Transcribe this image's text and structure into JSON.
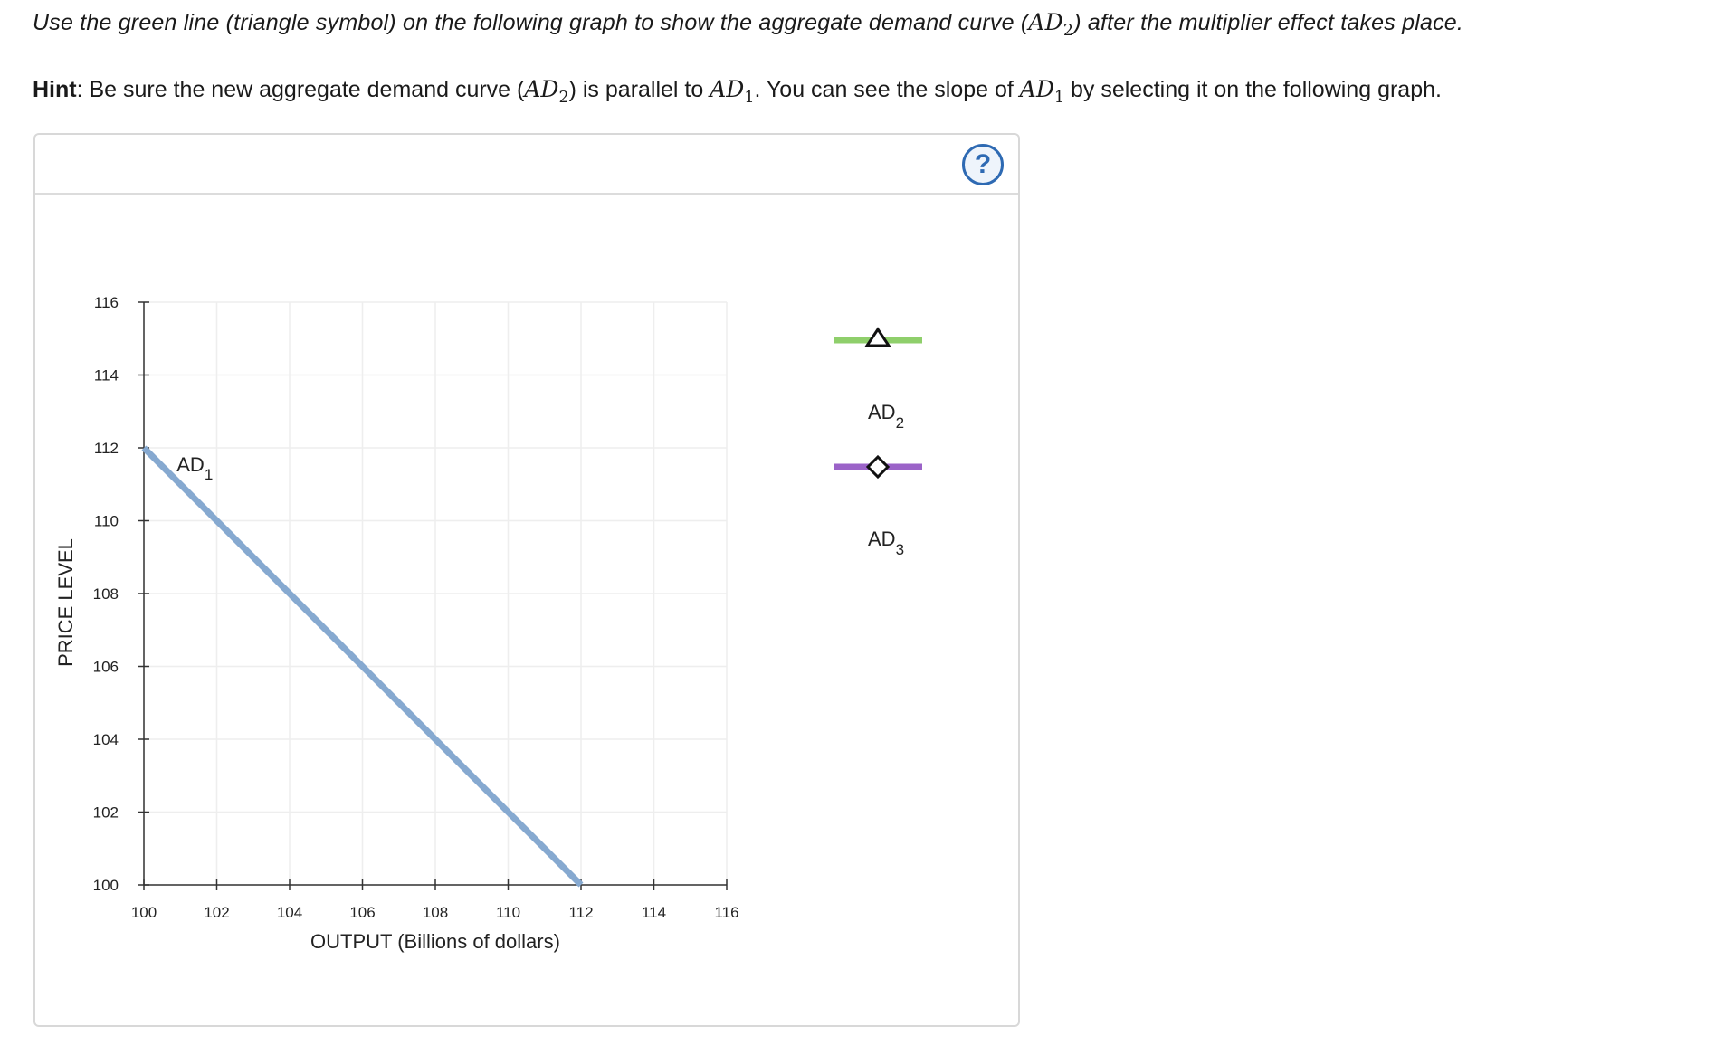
{
  "instructions": {
    "text_before": "Use the green line (triangle symbol) on the following graph to show the aggregate demand curve (",
    "math_ad2": "AD",
    "math_ad2_sub": "2",
    "text_after": ") after the multiplier effect takes place."
  },
  "hint": {
    "label": "Hint",
    "part1": ": Be sure the new aggregate demand curve (",
    "m1": "AD",
    "m1_sub": "2",
    "part2": ") is parallel to ",
    "m2": "AD",
    "m2_sub": "1",
    "part3": ". You can see the slope of ",
    "m3": "AD",
    "m3_sub": "1",
    "part4": " by selecting it on the following graph."
  },
  "help_icon": "question-circle-icon",
  "help_glyph": "?",
  "colors": {
    "ad1": "#86a9d0",
    "ad2": "#8fcf6b",
    "ad3": "#9b63c8",
    "grid": "#eeeeee",
    "axis": "#333333"
  },
  "chart_data": {
    "type": "line",
    "xlabel": "OUTPUT (Billions of dollars)",
    "ylabel": "PRICE LEVEL",
    "xlim": [
      100,
      116
    ],
    "ylim": [
      100,
      116
    ],
    "xticks": [
      100,
      102,
      104,
      106,
      108,
      110,
      112,
      114,
      116
    ],
    "yticks": [
      100,
      102,
      104,
      106,
      108,
      110,
      112,
      114,
      116
    ],
    "grid": true,
    "series": [
      {
        "name": "AD",
        "name_sub": "1",
        "points": [
          [
            100,
            112
          ],
          [
            112,
            100
          ]
        ],
        "label_at": [
          101,
          111.4
        ]
      }
    ],
    "tools": [
      {
        "name": "AD",
        "sub": "2",
        "symbol": "triangle"
      },
      {
        "name": "AD",
        "sub": "3",
        "symbol": "diamond"
      }
    ]
  }
}
